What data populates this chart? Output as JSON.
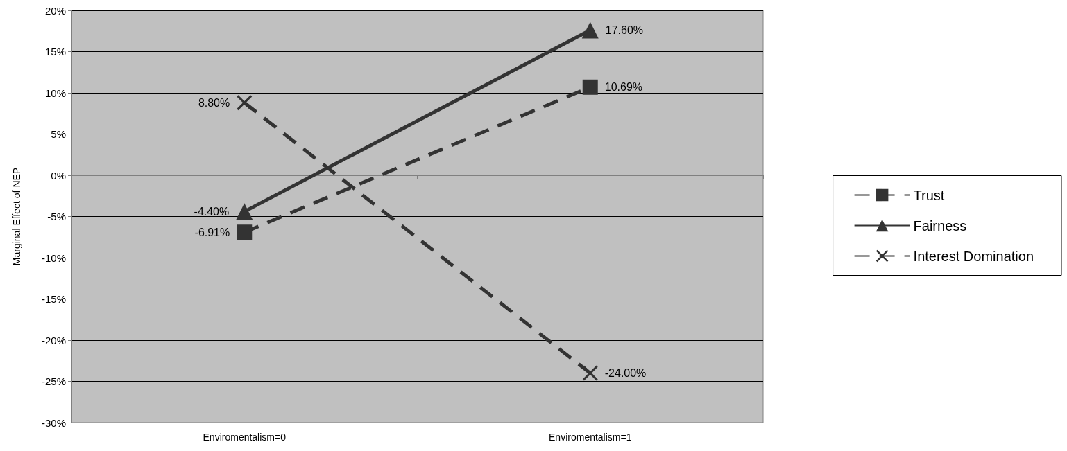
{
  "chart_data": {
    "type": "line",
    "ylabel": "Marginal Effect of NEP",
    "categories": [
      "Enviromentalism=0",
      "Enviromentalism=1"
    ],
    "series": [
      {
        "name": "Trust",
        "color": "#333333",
        "values": [
          -6.91,
          10.69
        ],
        "marker": "square",
        "line_style": "dashed",
        "value_labels": [
          "-6.91%",
          "10.69%"
        ]
      },
      {
        "name": "Fairness",
        "color": "#333333",
        "values": [
          -4.4,
          17.6
        ],
        "marker": "triangle",
        "line_style": "solid",
        "value_labels": [
          "-4.40%",
          "17.60%"
        ]
      },
      {
        "name": "Interest Domination",
        "color": "#333333",
        "values": [
          8.8,
          -24.0
        ],
        "marker": "cross",
        "line_style": "dashed",
        "value_labels": [
          "8.80%",
          "-24.00%"
        ]
      }
    ],
    "ylim": [
      -30,
      20
    ],
    "yticks": [
      {
        "value": -30,
        "label": "-30%"
      },
      {
        "value": -25,
        "label": "-25%"
      },
      {
        "value": -20,
        "label": "-20%"
      },
      {
        "value": -15,
        "label": "-15%"
      },
      {
        "value": -10,
        "label": "-10%"
      },
      {
        "value": -5,
        "label": "-5%"
      },
      {
        "value": 0,
        "label": "0%"
      },
      {
        "value": 5,
        "label": "5%"
      },
      {
        "value": 10,
        "label": "10%"
      },
      {
        "value": 15,
        "label": "15%"
      },
      {
        "value": 20,
        "label": "20%"
      }
    ],
    "grid": "y",
    "legend": "right"
  }
}
